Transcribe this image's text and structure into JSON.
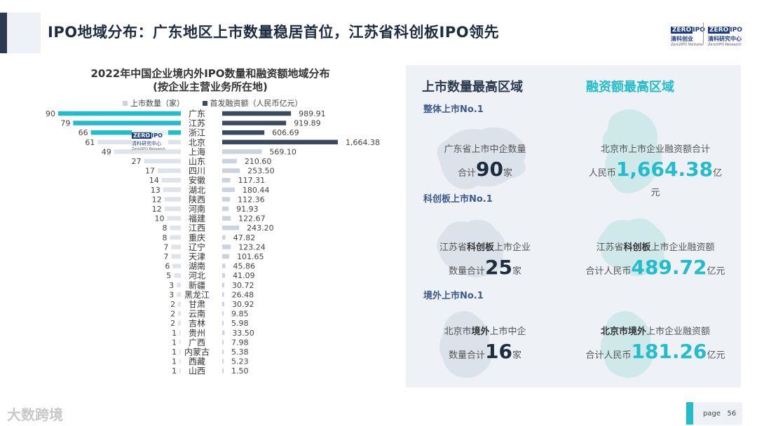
{
  "header": {
    "title": "IPO地域分布：广东地区上市数量稳居首位，江苏省科创板IPO领先",
    "logo_left": {
      "brand_a": "ZERO",
      "brand_b": "IPO",
      "cn": "清科创业",
      "en": "Zero2IPO Ventures"
    },
    "logo_right": {
      "brand_a": "ZERO",
      "brand_b": "IPO",
      "cn": "清科研究中心",
      "en": "Zero2IPO Research"
    }
  },
  "watermark": {
    "brand_a": "ZERO",
    "brand_b": "IPO",
    "cn": "清科研究中心",
    "en": "Zero2IPO Research"
  },
  "chart_data": {
    "type": "bar",
    "title": "2022年中国企业境内外IPO数量和融资额地域分布",
    "subtitle": "(按企业主营业务所在地)",
    "categories": [
      "广东",
      "江苏",
      "浙江",
      "北京",
      "上海",
      "山东",
      "四川",
      "安徽",
      "湖北",
      "陕西",
      "河南",
      "福建",
      "江西",
      "重庆",
      "辽宁",
      "天津",
      "湖南",
      "河北",
      "新疆",
      "黑龙江",
      "甘肃",
      "云南",
      "吉林",
      "贵州",
      "广西",
      "内蒙古",
      "西藏",
      "山西"
    ],
    "series": [
      {
        "name": "上市数量（家）",
        "values": [
          90,
          79,
          66,
          61,
          49,
          27,
          17,
          14,
          13,
          12,
          12,
          10,
          8,
          8,
          7,
          7,
          6,
          5,
          3,
          3,
          2,
          2,
          2,
          1,
          1,
          1,
          1,
          1
        ]
      },
      {
        "name": "首发融资额（人民币亿元）",
        "values": [
          989.91,
          919.89,
          606.69,
          1664.38,
          569.1,
          210.6,
          253.5,
          117.31,
          180.44,
          112.36,
          91.93,
          122.67,
          243.2,
          47.82,
          123.24,
          101.65,
          45.86,
          41.09,
          30.72,
          26.48,
          30.92,
          9.85,
          5.98,
          33.5,
          7.98,
          5.38,
          5.23,
          1.5
        ]
      }
    ],
    "value_labels_right": [
      "989.91",
      "919.89",
      "606.69",
      "1,664.38",
      "569.10",
      "210.60",
      "253.50",
      "117.31",
      "180.44",
      "112.36",
      "91.93",
      "122.67",
      "243.20",
      "47.82",
      "123.24",
      "101.65",
      "45.86",
      "41.09",
      "30.72",
      "26.48",
      "30.92",
      "9.85",
      "5.98",
      "33.50",
      "7.98",
      "5.38",
      "5.23",
      "1.50"
    ],
    "highlight_top": 3,
    "colors": {
      "count_highlight": "#23bccc",
      "count": "#dfe3ea",
      "amount_highlight": "#3c4a60",
      "amount": "#ccd3df"
    },
    "legend_position": "top"
  },
  "panel": {
    "col1_title": "上市数量最高区域",
    "col2_title": "融资额最高区域",
    "sections": [
      {
        "label": "整体上市No.1",
        "left": {
          "line1": "广东省上市中企数量",
          "prefix": "合计",
          "value": "90",
          "unit": "家"
        },
        "right": {
          "line1": "北京市上市企业融资额合计",
          "prefix": "人民币",
          "value": "1,664.38",
          "unit": "亿元"
        }
      },
      {
        "label": "科创板上市No.1",
        "left": {
          "pre": "江苏省",
          "bold": "科创板",
          "post": "上市企业",
          "prefix": "数量合计",
          "value": "25",
          "unit": "家"
        },
        "right": {
          "pre": "江苏省",
          "bold": "科创板",
          "post": "上市企业融资额",
          "prefix": "合计人民币",
          "value": "489.72",
          "unit": "亿元"
        }
      },
      {
        "label": "境外上市No.1",
        "left": {
          "pre": "北京市",
          "bold": "境外",
          "post": "上市中企",
          "prefix": "数量合计",
          "value": "16",
          "unit": "家"
        },
        "right": {
          "pre": "北京市境外",
          "bold": "",
          "post": "上市企业融资额",
          "prefix": "合计人民币",
          "value": "181.26",
          "unit": "亿元"
        }
      }
    ],
    "colors": {
      "col1": "#2b3a4e",
      "col2": "#23bccc"
    }
  },
  "footer": {
    "brand": "大数跨境",
    "page_label": "page",
    "page_number": "56"
  }
}
